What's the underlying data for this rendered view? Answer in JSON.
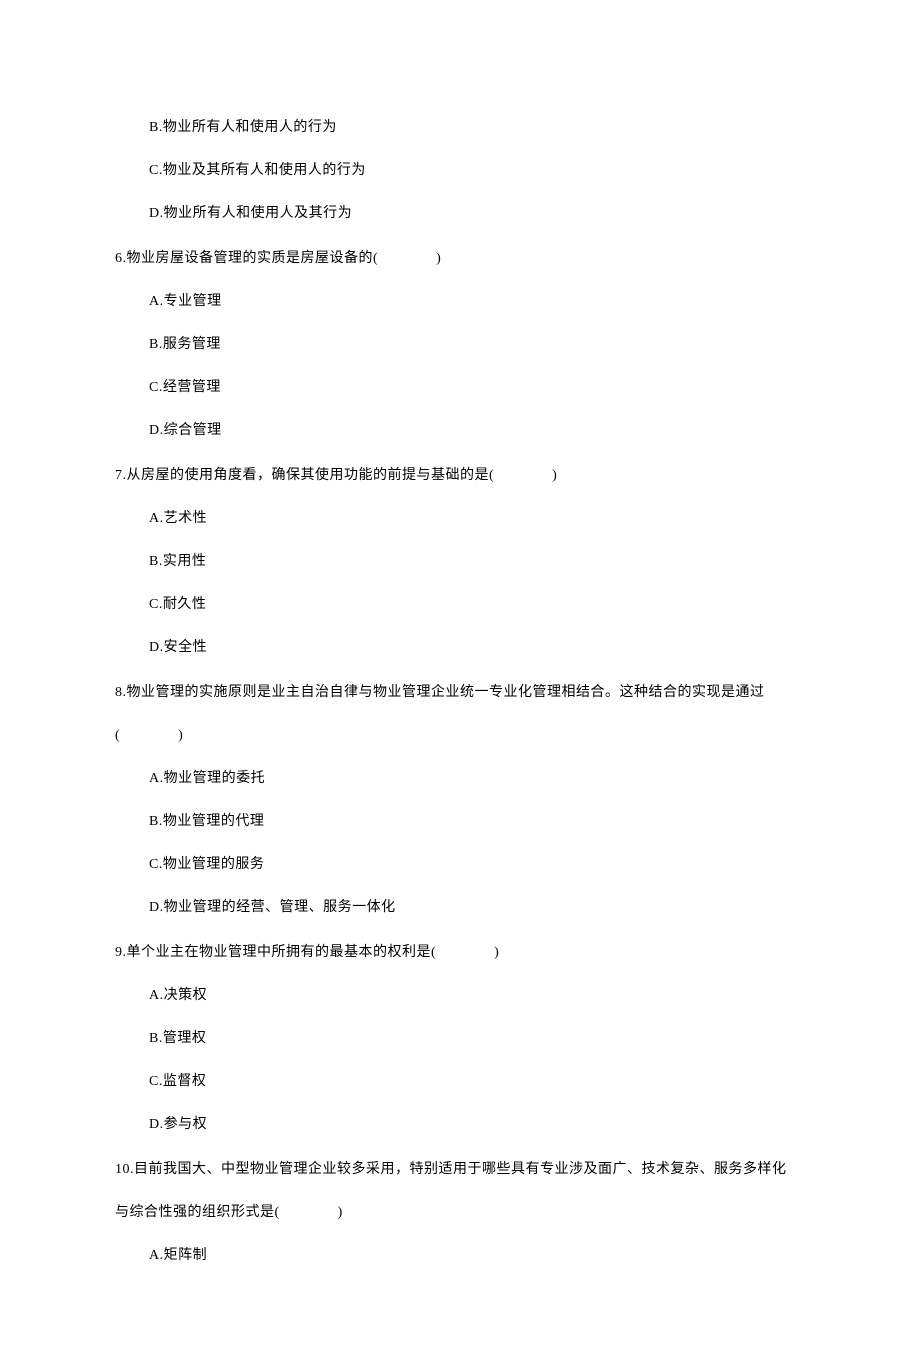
{
  "q5_options": {
    "B": "B.物业所有人和使用人的行为",
    "C": "C.物业及其所有人和使用人的行为",
    "D": "D.物业所有人和使用人及其行为"
  },
  "q6": {
    "stem": "6.物业房屋设备管理的实质是房屋设备的(　　　　)",
    "A": "A.专业管理",
    "B": "B.服务管理",
    "C": "C.经营管理",
    "D": "D.综合管理"
  },
  "q7": {
    "stem": "7.从房屋的使用角度看，确保其使用功能的前提与基础的是(　　　　)",
    "A": "A.艺术性",
    "B": "B.实用性",
    "C": "C.耐久性",
    "D": "D.安全性"
  },
  "q8": {
    "stem": "8.物业管理的实施原则是业主自治自律与物业管理企业统一专业化管理相结合。这种结合的实现是通过",
    "stem_cont": "(　　　　)",
    "A": "A.物业管理的委托",
    "B": "B.物业管理的代理",
    "C": "C.物业管理的服务",
    "D": "D.物业管理的经营、管理、服务一体化"
  },
  "q9": {
    "stem": "9.单个业主在物业管理中所拥有的最基本的权利是(　　　　)",
    "A": "A.决策权",
    "B": "B.管理权",
    "C": "C.监督权",
    "D": "D.参与权"
  },
  "q10": {
    "stem": "10.目前我国大、中型物业管理企业较多采用，特别适用于哪些具有专业涉及面广、技术复杂、服务多样化",
    "stem_cont": "与综合性强的组织形式是(　　　　)",
    "A": "A.矩阵制"
  }
}
